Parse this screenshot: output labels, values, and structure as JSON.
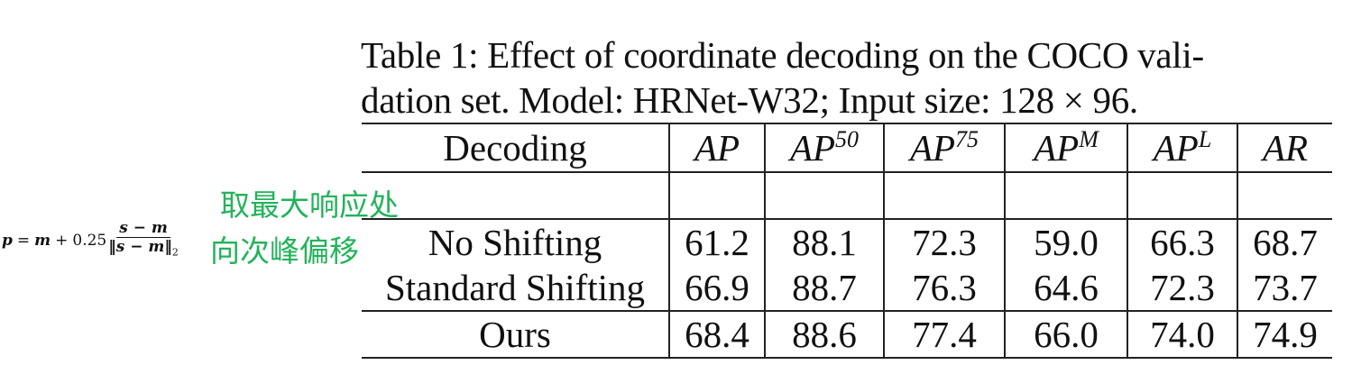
{
  "caption": {
    "label": "Table 1:",
    "text": "Effect of coordinate decoding on the COCO validation set. Model: HRNet-W32; Input size: 128 × 96.",
    "line1": "Table 1:  Effect of coordinate decoding on the COCO vali-",
    "line2": "dation set. Model: HRNet-W32; Input size: 128 × 96."
  },
  "formula": {
    "lhs": "p",
    "equals": "=",
    "m": "m",
    "plus": "+",
    "coef": "0.25",
    "numerator": "s − m",
    "denominator": "‖s − m‖",
    "norm_sub": "2"
  },
  "annotations": [
    {
      "text": "取最大响应处",
      "color": "#22b35a",
      "row": "No Shifting"
    },
    {
      "text": "向次峰偏移",
      "color": "#22b35a",
      "row": "Standard Shifting"
    }
  ],
  "table": {
    "headers": [
      {
        "base": "Decoding",
        "sup": ""
      },
      {
        "base": "AP",
        "sup": ""
      },
      {
        "base": "AP",
        "sup": "50"
      },
      {
        "base": "AP",
        "sup": "75"
      },
      {
        "base": "AP",
        "sup": "M"
      },
      {
        "base": "AP",
        "sup": "L"
      },
      {
        "base": "AR",
        "sup": ""
      }
    ],
    "rows": [
      {
        "label": "No Shifting",
        "values": [
          "61.2",
          "88.1",
          "72.3",
          "59.0",
          "66.3",
          "68.7"
        ],
        "bold": [
          false,
          false,
          false,
          false,
          false,
          false
        ],
        "label_bold": false
      },
      {
        "label": "Standard Shifting",
        "values": [
          "66.9",
          "88.7",
          "76.3",
          "64.6",
          "72.3",
          "73.7"
        ],
        "bold": [
          false,
          true,
          false,
          false,
          false,
          false
        ],
        "label_bold": false
      },
      {
        "label": "Ours",
        "values": [
          "68.4",
          "88.6",
          "77.4",
          "66.0",
          "74.0",
          "74.9"
        ],
        "bold": [
          true,
          false,
          true,
          true,
          true,
          true
        ],
        "label_bold": true
      }
    ]
  },
  "chart_data": {
    "type": "table",
    "title": "Table 1: Effect of coordinate decoding on the COCO validation set. Model: HRNet-W32; Input size: 128 × 96.",
    "columns": [
      "Decoding",
      "AP",
      "AP^50",
      "AP^75",
      "AP^M",
      "AP^L",
      "AR"
    ],
    "rows": [
      [
        "No Shifting",
        61.2,
        88.1,
        72.3,
        59.0,
        66.3,
        68.7
      ],
      [
        "Standard Shifting",
        66.9,
        88.7,
        76.3,
        64.6,
        72.3,
        73.7
      ],
      [
        "Ours",
        68.4,
        88.6,
        77.4,
        66.0,
        74.0,
        74.9
      ]
    ],
    "bold_cells": [
      [
        "Standard Shifting",
        "AP^50"
      ],
      [
        "Ours",
        "AP"
      ],
      [
        "Ours",
        "AP^75"
      ],
      [
        "Ours",
        "AP^M"
      ],
      [
        "Ours",
        "AP^L"
      ],
      [
        "Ours",
        "AR"
      ],
      [
        "Ours",
        "Decoding"
      ]
    ]
  }
}
